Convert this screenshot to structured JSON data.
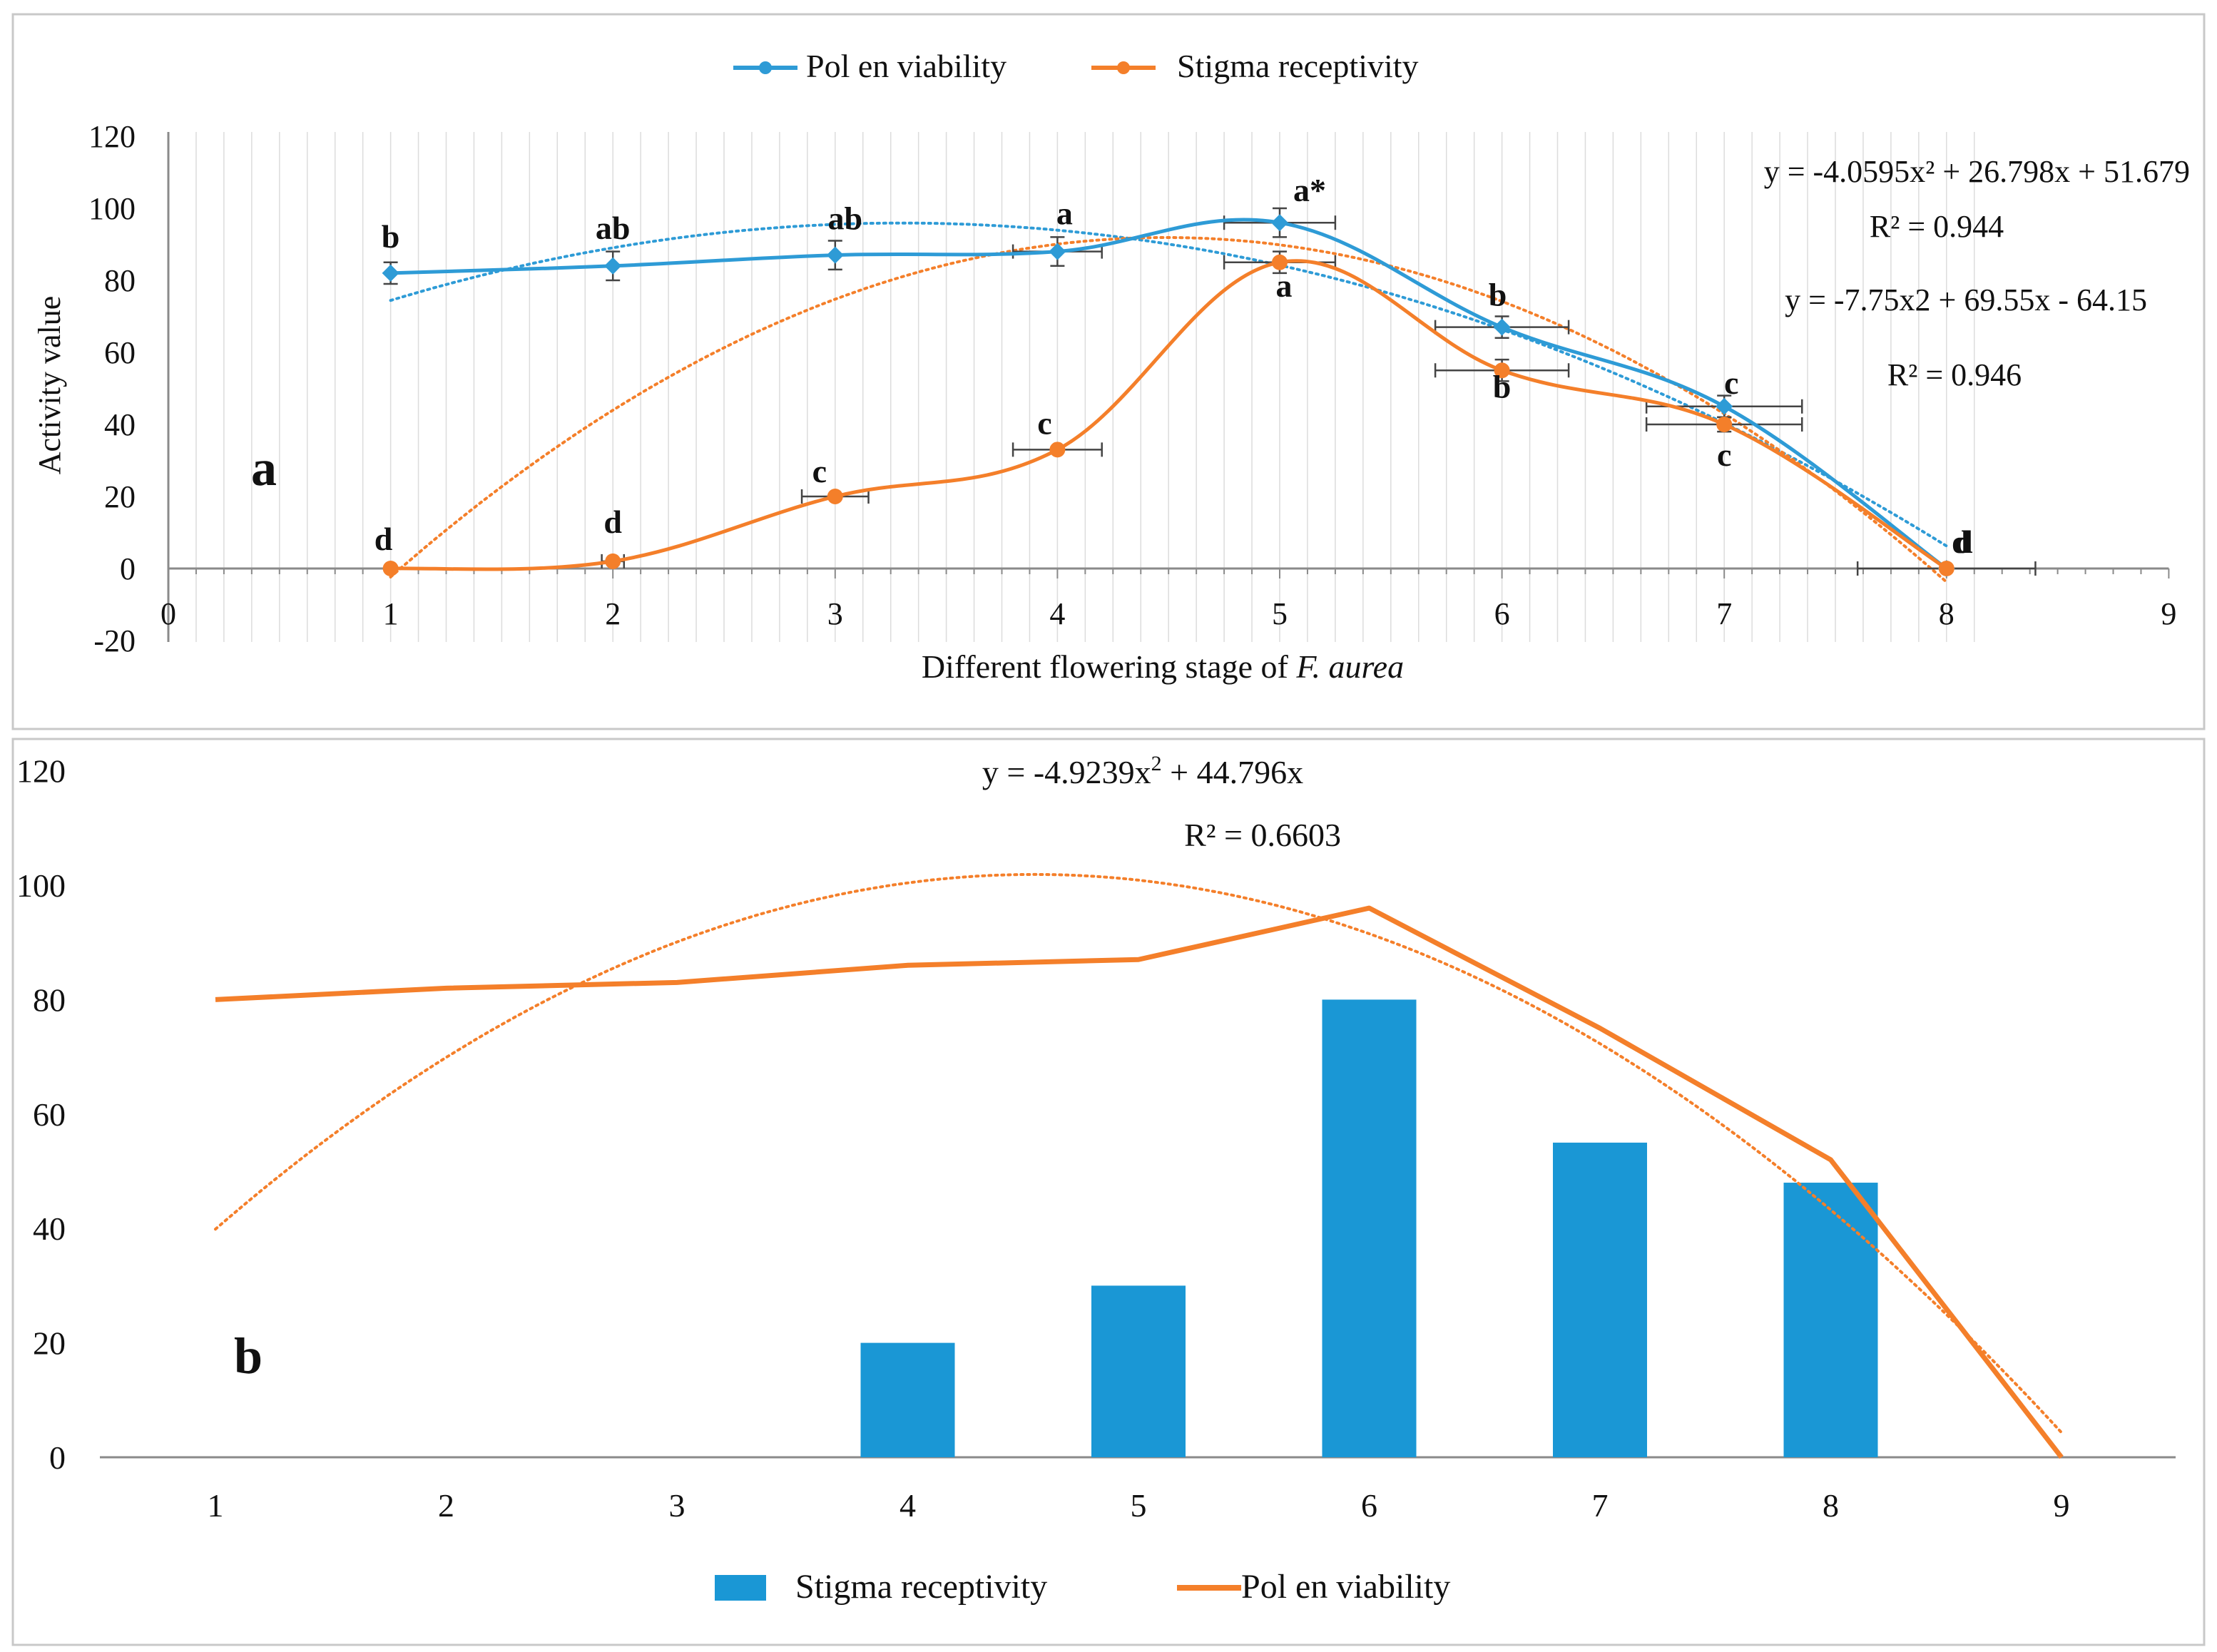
{
  "colors": {
    "blue": "#2E9BD6",
    "orange": "#F47F2A",
    "bar_blue": "#1A97D5",
    "axis": "#8a8a8a",
    "grid": "#dcdcdc",
    "frame": "#c8c8c8",
    "text": "#111111"
  },
  "chart_data": [
    {
      "panel": "a",
      "type": "line",
      "xlabel": "Different flowering  stage of ",
      "xlabel_italic": "F. aurea",
      "ylabel": "Activity value",
      "xlim": [
        0,
        9
      ],
      "ylim": [
        -20,
        120
      ],
      "x_ticks": [
        "0",
        "1",
        "2",
        "3",
        "4",
        "5",
        "6",
        "7",
        "8",
        "9"
      ],
      "y_ticks": [
        "-20",
        "0",
        "20",
        "40",
        "60",
        "80",
        "100",
        "120"
      ],
      "legend": [
        "Pol en viability",
        "Stigma receptivity"
      ],
      "series": [
        {
          "name": "Pollen viability",
          "color": "blue",
          "x": [
            1,
            2,
            3,
            4,
            5,
            6,
            7,
            8
          ],
          "y": [
            82,
            84,
            87,
            88,
            96,
            67,
            45,
            0
          ],
          "y_err": [
            3,
            4,
            4,
            4,
            4,
            3,
            3,
            0
          ],
          "x_err": [
            0,
            0,
            0,
            0.2,
            0.25,
            0.3,
            0.35,
            0
          ],
          "labels": [
            "b",
            "ab",
            "ab",
            "a",
            "a*",
            "b",
            "c",
            "d"
          ],
          "trend": {
            "type": "poly2",
            "a": -4.0595,
            "b": 26.798,
            "c": 51.679,
            "equation": "y = -4.0595x² + 26.798x + 51.679",
            "r2": "R² = 0.944"
          }
        },
        {
          "name": "Stigma receptivity",
          "color": "orange",
          "x": [
            1,
            2,
            3,
            4,
            5,
            6,
            7,
            8
          ],
          "y": [
            0,
            2,
            20,
            33,
            85,
            55,
            40,
            0
          ],
          "y_err": [
            0,
            0,
            0,
            0,
            3,
            3,
            2,
            0
          ],
          "x_err": [
            0,
            0.05,
            0.15,
            0.2,
            0.25,
            0.3,
            0.35,
            0.4
          ],
          "labels": [
            "d",
            "d",
            "c",
            "c",
            "a",
            "b",
            "c",
            "d"
          ],
          "trend": {
            "type": "poly2",
            "a": -7.75,
            "b": 69.55,
            "c": -64.15,
            "equation": "y = -7.75x2  + 69.55x  - 64.15",
            "r2": "R² = 0.946"
          }
        }
      ]
    },
    {
      "panel": "b",
      "type": "bar+line",
      "categories": [
        "1",
        "2",
        "3",
        "4",
        "5",
        "6",
        "7",
        "8",
        "9"
      ],
      "ylim": [
        0,
        120
      ],
      "y_ticks": [
        "0",
        "20",
        "40",
        "60",
        "80",
        "100",
        "120"
      ],
      "legend": [
        "Stigma receptivity",
        "Pol en viability"
      ],
      "bars": {
        "name": "Stigma receptivity",
        "values": [
          0,
          0,
          0,
          20,
          30,
          80,
          55,
          48,
          0
        ]
      },
      "line": {
        "name": "Pollen viability",
        "values": [
          80,
          82,
          83,
          86,
          87,
          96,
          75,
          52,
          0
        ]
      },
      "trend": {
        "type": "poly2",
        "a": -4.9239,
        "b": 44.796,
        "c": 0,
        "equation_prefix": "y = -4.9239x",
        "equation_sup": "2",
        "equation_suffix": " + 44.796x",
        "r2": "R² = 0.6603"
      }
    }
  ]
}
